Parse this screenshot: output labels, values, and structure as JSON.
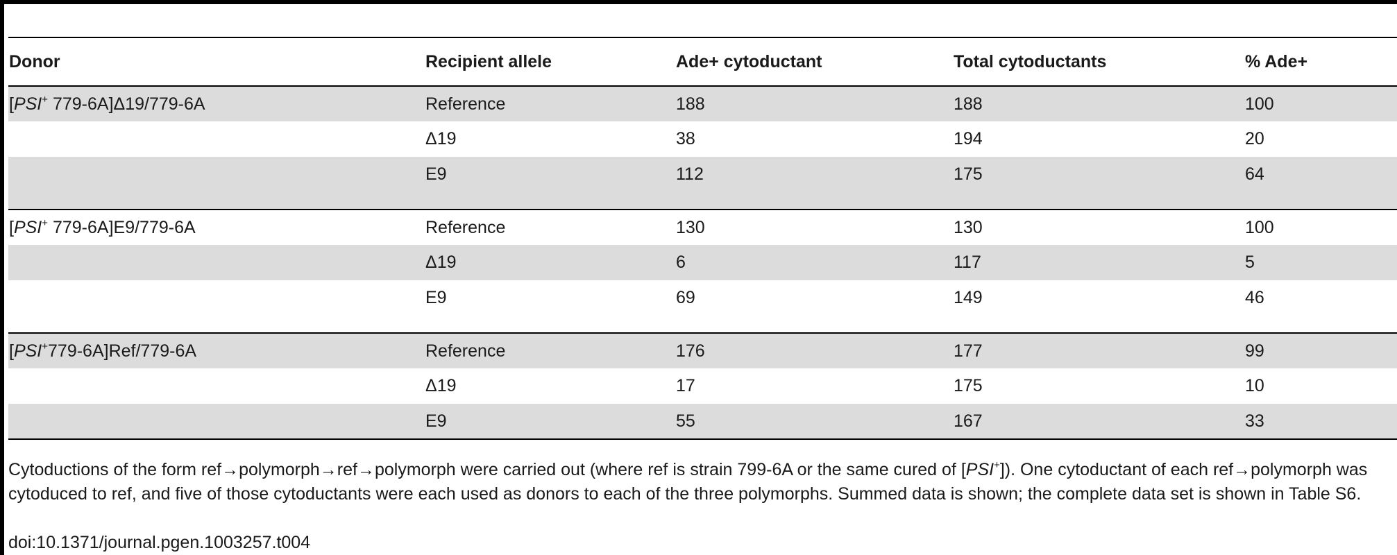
{
  "headers": [
    "Donor",
    "Recipient allele",
    "Ade+ cytoductant",
    "Total cytoductants",
    "% Ade+"
  ],
  "donors": [
    {
      "bracket": "[",
      "italic": "PSI",
      "sup": "+",
      "rest": " 779-6A]Δ19/779-6A"
    },
    {
      "bracket": "[",
      "italic": "PSI",
      "sup": "+",
      "rest": " 779-6A]E9/779-6A"
    },
    {
      "bracket": "[",
      "italic": "PSI",
      "sup": "+",
      "rest": "779-6A]Ref/779-6A"
    }
  ],
  "rows": [
    {
      "allele": "Reference",
      "ade": "188",
      "total": "188",
      "pct": "100"
    },
    {
      "allele": "Δ19",
      "ade": "38",
      "total": "194",
      "pct": "20"
    },
    {
      "allele": "E9",
      "ade": "112",
      "total": "175",
      "pct": "64"
    },
    {
      "allele": "Reference",
      "ade": "130",
      "total": "130",
      "pct": "100"
    },
    {
      "allele": "Δ19",
      "ade": "6",
      "total": "117",
      "pct": "5"
    },
    {
      "allele": "E9",
      "ade": "69",
      "total": "149",
      "pct": "46"
    },
    {
      "allele": "Reference",
      "ade": "176",
      "total": "177",
      "pct": "99"
    },
    {
      "allele": "Δ19",
      "ade": "17",
      "total": "175",
      "pct": "10"
    },
    {
      "allele": "E9",
      "ade": "55",
      "total": "167",
      "pct": "33"
    }
  ],
  "caption": {
    "part1": "Cytoductions of the form ref→polymorph→ref→polymorph were carried out (where ref is strain 799-6A or the same cured of [",
    "italic": "PSI",
    "sup": "+",
    "part2": "]). One cytoductant of each ref→polymorph was cytoduced to ref, and five of those cytoductants were each used as donors to each of the three polymorphs. Summed data is shown; the complete data set is shown in Table S6."
  },
  "doi": "doi:10.1371/journal.pgen.1003257.t004"
}
